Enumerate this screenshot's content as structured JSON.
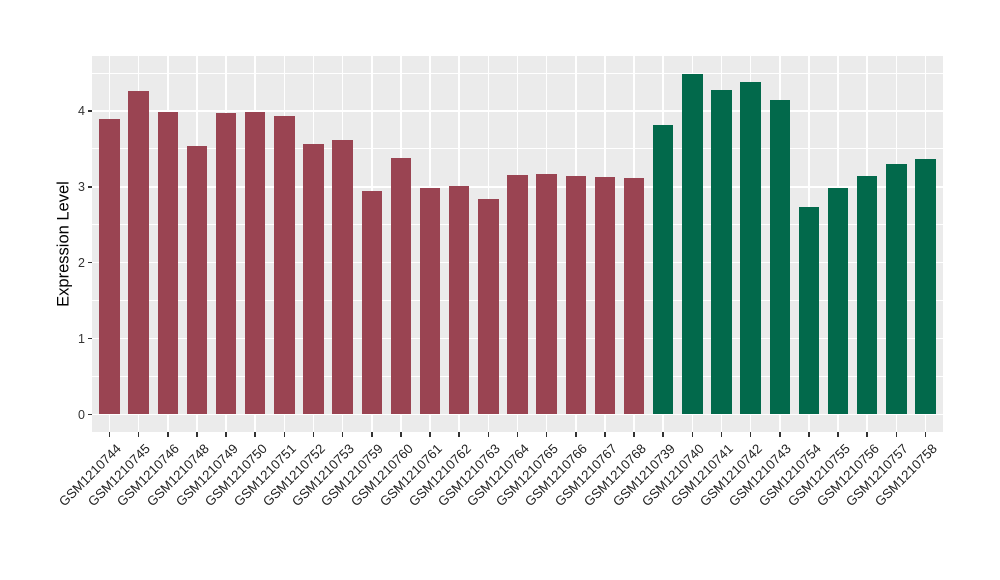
{
  "chart_data": {
    "type": "bar",
    "title": "",
    "ylabel": "Expression Level",
    "xlabel": "",
    "categories": [
      "GSM1210744",
      "GSM1210745",
      "GSM1210746",
      "GSM1210748",
      "GSM1210749",
      "GSM1210750",
      "GSM1210751",
      "GSM1210752",
      "GSM1210753",
      "GSM1210759",
      "GSM1210760",
      "GSM1210761",
      "GSM1210762",
      "GSM1210763",
      "GSM1210764",
      "GSM1210765",
      "GSM1210766",
      "GSM1210767",
      "GSM1210768",
      "GSM1210739",
      "GSM1210740",
      "GSM1210741",
      "GSM1210742",
      "GSM1210743",
      "GSM1210754",
      "GSM1210755",
      "GSM1210756",
      "GSM1210757",
      "GSM1210758"
    ],
    "values": [
      3.89,
      4.26,
      3.98,
      3.54,
      3.97,
      3.98,
      3.93,
      3.57,
      3.62,
      2.94,
      3.38,
      2.99,
      3.01,
      2.84,
      3.15,
      3.17,
      3.14,
      3.13,
      3.12,
      3.81,
      4.49,
      4.28,
      4.38,
      4.14,
      2.74,
      2.98,
      3.14,
      3.3,
      3.36
    ],
    "group_split_index": 19,
    "group_colors": [
      "#9A4452",
      "#02694B"
    ],
    "y_ticks": [
      0,
      1,
      2,
      3,
      4
    ],
    "y_minor_ticks": [
      0.5,
      1.5,
      2.5,
      3.5,
      4.5
    ],
    "ylim": [
      -0.23,
      4.72
    ],
    "bar_width_fraction": 0.7,
    "panel_background": "#EBEBEB",
    "gridline_color": "#FFFFFF",
    "axis_text_color": "#1f1f1f",
    "legend_position": "none",
    "grid": {
      "major": true,
      "minor": true
    }
  }
}
